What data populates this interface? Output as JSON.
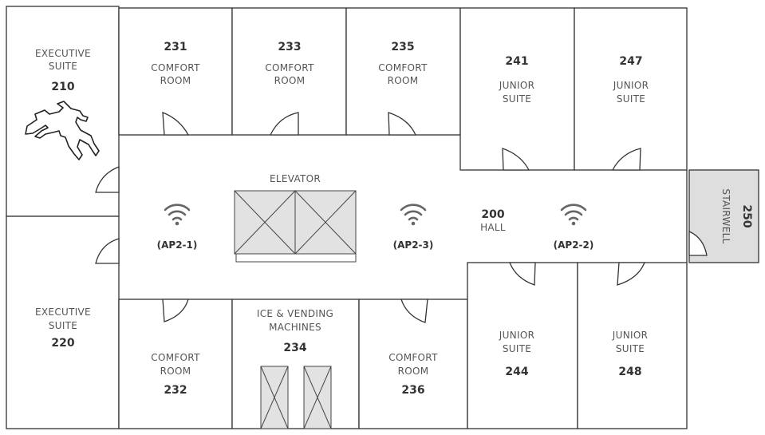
{
  "colors": {
    "wall": "#333333",
    "fixture_fill": "#e2e2e2",
    "stairwell_fill": "#dedede",
    "wifi_icon": "#666666"
  },
  "rooms": {
    "r210": {
      "type_line1": "EXECUTIVE",
      "type_line2": "SUITE",
      "number": "210"
    },
    "r231": {
      "number": "231",
      "type_line1": "COMFORT",
      "type_line2": "ROOM"
    },
    "r233": {
      "number": "233",
      "type_line1": "COMFORT",
      "type_line2": "ROOM"
    },
    "r235": {
      "number": "235",
      "type_line1": "COMFORT",
      "type_line2": "ROOM"
    },
    "r241": {
      "number": "241",
      "type_line1": "JUNIOR",
      "type_line2": "SUITE"
    },
    "r247": {
      "number": "247",
      "type_line1": "JUNIOR",
      "type_line2": "SUITE"
    },
    "r220": {
      "type_line1": "EXECUTIVE",
      "type_line2": "SUITE",
      "number": "220"
    },
    "r232": {
      "type_line1": "COMFORT",
      "type_line2": "ROOM",
      "number": "232"
    },
    "r234": {
      "type_line1": "ICE & VENDING",
      "type_line2": "MACHINES",
      "number": "234"
    },
    "r236": {
      "type_line1": "COMFORT",
      "type_line2": "ROOM",
      "number": "236"
    },
    "r244": {
      "type_line1": "JUNIOR",
      "type_line2": "SUITE",
      "number": "244"
    },
    "r248": {
      "type_line1": "JUNIOR",
      "type_line2": "SUITE",
      "number": "248"
    },
    "r250": {
      "number": "250",
      "type_line1": "STAIRWELL"
    },
    "hall": {
      "number": "200",
      "type_line1": "HALL"
    }
  },
  "elevator": {
    "label": "ELEVATOR"
  },
  "access_points": [
    {
      "label": "(AP2-1)",
      "icon": "wifi-icon"
    },
    {
      "label": "(AP2-3)",
      "icon": "wifi-icon"
    },
    {
      "label": "(AP2-2)",
      "icon": "wifi-icon"
    }
  ],
  "markers": {
    "body_outline": "chalk-outline-icon"
  }
}
